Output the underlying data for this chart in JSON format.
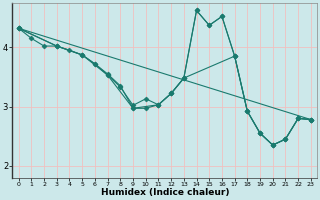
{
  "xlabel": "Humidex (Indice chaleur)",
  "bg_color": "#cce8ea",
  "line_color": "#1a7a6e",
  "grid_color": "#f0c0c0",
  "xlim": [
    -0.5,
    23.5
  ],
  "ylim": [
    1.8,
    4.75
  ],
  "yticks": [
    2,
    3,
    4
  ],
  "xticks": [
    0,
    1,
    2,
    3,
    4,
    5,
    6,
    7,
    8,
    9,
    10,
    11,
    12,
    13,
    14,
    15,
    16,
    17,
    18,
    19,
    20,
    21,
    22,
    23
  ],
  "line1_x": [
    0,
    1,
    2,
    3,
    4,
    5,
    6,
    7,
    8,
    9,
    10,
    11,
    12,
    13,
    14,
    15,
    16,
    17,
    18,
    19,
    20,
    21,
    22,
    23
  ],
  "line1_y": [
    4.32,
    4.15,
    4.02,
    4.02,
    3.95,
    3.87,
    3.72,
    3.53,
    3.33,
    3.02,
    3.13,
    3.03,
    3.22,
    3.48,
    4.62,
    4.37,
    4.52,
    3.85,
    2.92,
    2.55,
    2.35,
    2.45,
    2.8,
    2.78
  ],
  "line2_x": [
    0,
    3,
    5,
    6,
    7,
    8,
    9,
    10,
    11,
    12,
    13,
    14,
    15,
    16,
    17,
    18,
    19,
    20,
    21,
    22,
    23
  ],
  "line2_y": [
    4.32,
    4.02,
    3.87,
    3.72,
    3.55,
    3.35,
    2.97,
    2.97,
    3.03,
    3.22,
    3.48,
    4.62,
    4.37,
    4.52,
    3.85,
    2.92,
    2.55,
    2.35,
    2.45,
    2.8,
    2.78
  ],
  "line3_x": [
    0,
    3,
    5,
    7,
    9,
    11,
    12,
    13,
    17,
    18,
    19,
    20,
    21,
    22,
    23
  ],
  "line3_y": [
    4.32,
    4.02,
    3.87,
    3.53,
    2.97,
    3.03,
    3.22,
    3.48,
    3.85,
    2.92,
    2.55,
    2.35,
    2.45,
    2.8,
    2.78
  ],
  "line4_x": [
    0,
    23
  ],
  "line4_y": [
    4.32,
    2.78
  ],
  "marker": "D",
  "marker_size": 2.5,
  "linewidth": 0.8
}
